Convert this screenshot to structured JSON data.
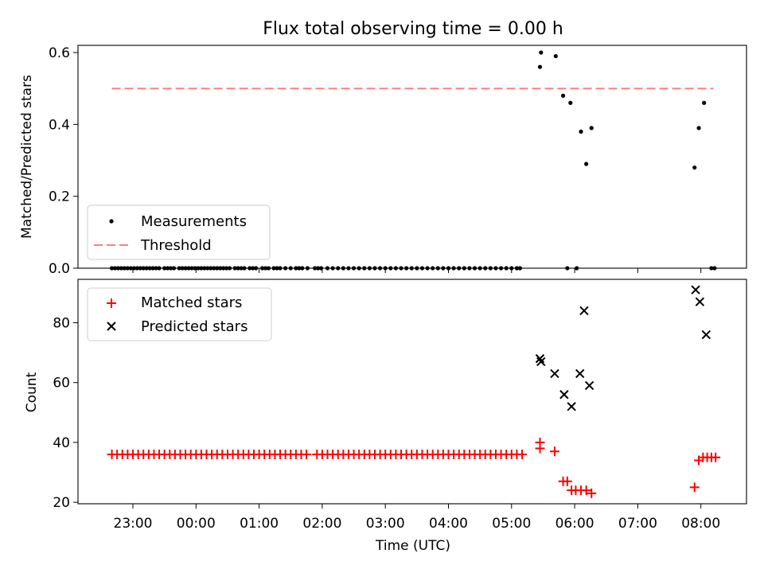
{
  "chart_data": [
    {
      "type": "scatter",
      "title": "Flux total observing time = 0.00 h",
      "ylabel": "Matched/Predicted stars",
      "ylim": [
        0,
        0.62
      ],
      "yticks": [
        0.0,
        0.2,
        0.4,
        0.6
      ],
      "ytick_labels": [
        "0.0",
        "0.2",
        "0.4",
        "0.6"
      ],
      "legend_position": "lower-left",
      "threshold": {
        "name": "Threshold",
        "value": 0.5,
        "x_start": "22:40",
        "x_end": "08:12",
        "color": "#ff7f7f"
      },
      "series": [
        {
          "name": "Measurements",
          "color": "#000000",
          "points": [
            [
              "22:40",
              0
            ],
            [
              "22:43",
              0
            ],
            [
              "22:46",
              0
            ],
            [
              "22:49",
              0
            ],
            [
              "22:52",
              0
            ],
            [
              "22:55",
              0
            ],
            [
              "22:58",
              0
            ],
            [
              "23:01",
              0
            ],
            [
              "23:04",
              0
            ],
            [
              "23:07",
              0
            ],
            [
              "23:10",
              0
            ],
            [
              "23:13",
              0
            ],
            [
              "23:16",
              0
            ],
            [
              "23:19",
              0
            ],
            [
              "23:22",
              0
            ],
            [
              "23:25",
              0
            ],
            [
              "23:30",
              0
            ],
            [
              "23:33",
              0
            ],
            [
              "23:36",
              0
            ],
            [
              "23:39",
              0
            ],
            [
              "23:44",
              0
            ],
            [
              "23:47",
              0
            ],
            [
              "23:50",
              0
            ],
            [
              "23:53",
              0
            ],
            [
              "23:56",
              0
            ],
            [
              "23:59",
              0
            ],
            [
              "00:02",
              0
            ],
            [
              "00:05",
              0
            ],
            [
              "00:08",
              0
            ],
            [
              "00:11",
              0
            ],
            [
              "00:14",
              0
            ],
            [
              "00:17",
              0
            ],
            [
              "00:20",
              0
            ],
            [
              "00:23",
              0
            ],
            [
              "00:26",
              0
            ],
            [
              "00:29",
              0
            ],
            [
              "00:32",
              0
            ],
            [
              "00:37",
              0
            ],
            [
              "00:40",
              0
            ],
            [
              "00:43",
              0
            ],
            [
              "00:46",
              0
            ],
            [
              "00:51",
              0
            ],
            [
              "00:54",
              0
            ],
            [
              "00:57",
              0
            ],
            [
              "01:03",
              0
            ],
            [
              "01:06",
              0
            ],
            [
              "01:09",
              0
            ],
            [
              "01:14",
              0
            ],
            [
              "01:17",
              0
            ],
            [
              "01:20",
              0
            ],
            [
              "01:25",
              0
            ],
            [
              "01:30",
              0
            ],
            [
              "01:35",
              0
            ],
            [
              "01:38",
              0
            ],
            [
              "01:41",
              0
            ],
            [
              "01:46",
              0
            ],
            [
              "01:53",
              0
            ],
            [
              "01:56",
              0
            ],
            [
              "01:59",
              0
            ],
            [
              "02:05",
              0
            ],
            [
              "02:10",
              0
            ],
            [
              "02:15",
              0
            ],
            [
              "02:20",
              0
            ],
            [
              "02:25",
              0
            ],
            [
              "02:30",
              0
            ],
            [
              "02:35",
              0
            ],
            [
              "02:40",
              0
            ],
            [
              "02:45",
              0
            ],
            [
              "02:50",
              0
            ],
            [
              "02:55",
              0
            ],
            [
              "03:00",
              0
            ],
            [
              "03:05",
              0
            ],
            [
              "03:10",
              0
            ],
            [
              "03:15",
              0
            ],
            [
              "03:20",
              0
            ],
            [
              "03:25",
              0
            ],
            [
              "03:30",
              0
            ],
            [
              "03:35",
              0
            ],
            [
              "03:40",
              0
            ],
            [
              "03:45",
              0
            ],
            [
              "03:50",
              0
            ],
            [
              "03:55",
              0
            ],
            [
              "04:00",
              0
            ],
            [
              "04:05",
              0
            ],
            [
              "04:10",
              0
            ],
            [
              "04:15",
              0
            ],
            [
              "04:20",
              0
            ],
            [
              "04:25",
              0
            ],
            [
              "04:30",
              0
            ],
            [
              "04:35",
              0
            ],
            [
              "04:40",
              0
            ],
            [
              "04:45",
              0
            ],
            [
              "04:50",
              0
            ],
            [
              "04:55",
              0
            ],
            [
              "05:00",
              0
            ],
            [
              "05:05",
              0
            ],
            [
              "05:08",
              0
            ],
            [
              "05:27",
              0.56
            ],
            [
              "05:28",
              0.6
            ],
            [
              "05:42",
              0.59
            ],
            [
              "05:49",
              0.48
            ],
            [
              "05:53",
              0
            ],
            [
              "05:56",
              0.46
            ],
            [
              "06:02",
              0
            ],
            [
              "06:06",
              0.38
            ],
            [
              "06:11",
              0.29
            ],
            [
              "06:16",
              0.39
            ],
            [
              "07:54",
              0.28
            ],
            [
              "07:58",
              0.39
            ],
            [
              "08:03",
              0.46
            ],
            [
              "08:10",
              0
            ],
            [
              "08:13",
              0
            ]
          ]
        }
      ]
    },
    {
      "type": "scatter",
      "xlabel": "Time (UTC)",
      "ylabel": "Count",
      "ylim": [
        19.5,
        94.5
      ],
      "yticks": [
        20,
        40,
        60,
        80
      ],
      "ytick_labels": [
        "20",
        "40",
        "60",
        "80"
      ],
      "xticks": [
        "23:00",
        "00:00",
        "01:00",
        "02:00",
        "03:00",
        "04:00",
        "05:00",
        "06:00",
        "07:00",
        "08:00"
      ],
      "legend_position": "upper-left",
      "series": [
        {
          "name": "Matched stars",
          "marker": "plus",
          "color": "#ff0000",
          "points": [
            [
              "22:40",
              36
            ],
            [
              "22:45",
              36
            ],
            [
              "22:50",
              36
            ],
            [
              "22:55",
              36
            ],
            [
              "23:00",
              36
            ],
            [
              "23:05",
              36
            ],
            [
              "23:10",
              36
            ],
            [
              "23:15",
              36
            ],
            [
              "23:20",
              36
            ],
            [
              "23:25",
              36
            ],
            [
              "23:30",
              36
            ],
            [
              "23:35",
              36
            ],
            [
              "23:40",
              36
            ],
            [
              "23:45",
              36
            ],
            [
              "23:50",
              36
            ],
            [
              "23:55",
              36
            ],
            [
              "00:00",
              36
            ],
            [
              "00:05",
              36
            ],
            [
              "00:10",
              36
            ],
            [
              "00:15",
              36
            ],
            [
              "00:20",
              36
            ],
            [
              "00:25",
              36
            ],
            [
              "00:30",
              36
            ],
            [
              "00:35",
              36
            ],
            [
              "00:40",
              36
            ],
            [
              "00:45",
              36
            ],
            [
              "00:50",
              36
            ],
            [
              "00:55",
              36
            ],
            [
              "01:00",
              36
            ],
            [
              "01:05",
              36
            ],
            [
              "01:10",
              36
            ],
            [
              "01:15",
              36
            ],
            [
              "01:20",
              36
            ],
            [
              "01:25",
              36
            ],
            [
              "01:30",
              36
            ],
            [
              "01:35",
              36
            ],
            [
              "01:40",
              36
            ],
            [
              "01:45",
              36
            ],
            [
              "01:55",
              36
            ],
            [
              "02:00",
              36
            ],
            [
              "02:05",
              36
            ],
            [
              "02:10",
              36
            ],
            [
              "02:15",
              36
            ],
            [
              "02:20",
              36
            ],
            [
              "02:25",
              36
            ],
            [
              "02:30",
              36
            ],
            [
              "02:35",
              36
            ],
            [
              "02:40",
              36
            ],
            [
              "02:45",
              36
            ],
            [
              "02:50",
              36
            ],
            [
              "02:55",
              36
            ],
            [
              "03:00",
              36
            ],
            [
              "03:05",
              36
            ],
            [
              "03:10",
              36
            ],
            [
              "03:15",
              36
            ],
            [
              "03:20",
              36
            ],
            [
              "03:25",
              36
            ],
            [
              "03:30",
              36
            ],
            [
              "03:35",
              36
            ],
            [
              "03:40",
              36
            ],
            [
              "03:45",
              36
            ],
            [
              "03:50",
              36
            ],
            [
              "03:55",
              36
            ],
            [
              "04:00",
              36
            ],
            [
              "04:05",
              36
            ],
            [
              "04:10",
              36
            ],
            [
              "04:15",
              36
            ],
            [
              "04:20",
              36
            ],
            [
              "04:25",
              36
            ],
            [
              "04:30",
              36
            ],
            [
              "04:35",
              36
            ],
            [
              "04:40",
              36
            ],
            [
              "04:45",
              36
            ],
            [
              "04:50",
              36
            ],
            [
              "04:55",
              36
            ],
            [
              "05:00",
              36
            ],
            [
              "05:05",
              36
            ],
            [
              "05:10",
              36
            ],
            [
              "05:27",
              40
            ],
            [
              "05:27",
              38
            ],
            [
              "05:41",
              37
            ],
            [
              "05:49",
              27
            ],
            [
              "05:53",
              27
            ],
            [
              "05:57",
              24
            ],
            [
              "06:01",
              24
            ],
            [
              "06:06",
              24
            ],
            [
              "06:11",
              24
            ],
            [
              "06:16",
              23
            ],
            [
              "07:54",
              25
            ],
            [
              "07:58",
              34
            ],
            [
              "08:02",
              35
            ],
            [
              "08:06",
              35
            ],
            [
              "08:10",
              35
            ],
            [
              "08:14",
              35
            ]
          ]
        },
        {
          "name": "Predicted stars",
          "marker": "x",
          "color": "#000000",
          "points": [
            [
              "05:27",
              68
            ],
            [
              "05:28",
              67
            ],
            [
              "05:41",
              63
            ],
            [
              "05:50",
              56
            ],
            [
              "05:57",
              52
            ],
            [
              "06:05",
              63
            ],
            [
              "06:09",
              84
            ],
            [
              "06:14",
              59
            ],
            [
              "07:55",
              91
            ],
            [
              "07:59",
              87
            ],
            [
              "08:05",
              76
            ]
          ]
        }
      ]
    }
  ]
}
